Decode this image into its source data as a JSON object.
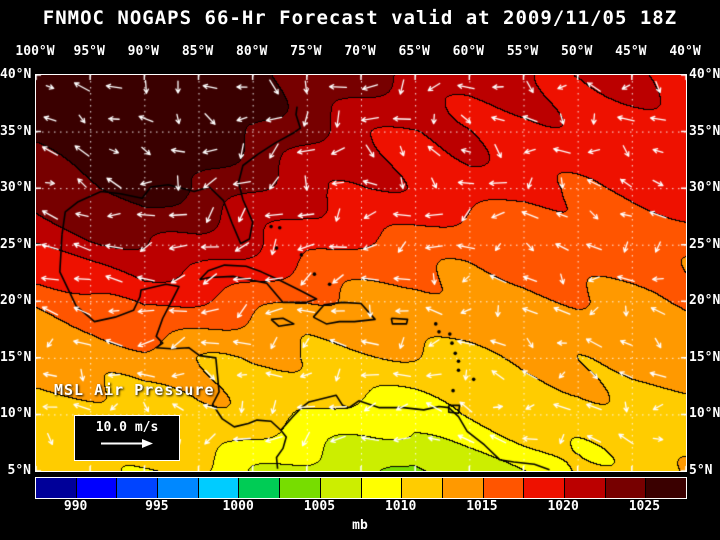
{
  "title": "FNMOC NOGAPS 66-Hr Forecast valid at 2009/11/05 18Z",
  "axes": {
    "lon_labels": [
      "100°W",
      "95°W",
      "90°W",
      "85°W",
      "80°W",
      "75°W",
      "70°W",
      "65°W",
      "60°W",
      "55°W",
      "50°W",
      "45°W",
      "40°W"
    ],
    "lat_labels": [
      "40°N",
      "35°N",
      "30°N",
      "25°N",
      "20°N",
      "15°N",
      "10°N",
      "5°N"
    ]
  },
  "overlay": {
    "field_label": "MSL Air Pressure",
    "wind_scale_label": "10.0 m/s"
  },
  "colorbar": {
    "unit": "mb",
    "tick_labels": [
      "990",
      "995",
      "1000",
      "1005",
      "1010",
      "1015",
      "1020",
      "1025"
    ],
    "level_min": 987.5,
    "level_max": 1027.5,
    "level_step": 2.5,
    "colors": [
      "#000099",
      "#0000ff",
      "#0044ff",
      "#0088ff",
      "#00ccff",
      "#00cc55",
      "#77dd00",
      "#ccee00",
      "#ffff00",
      "#ffcc00",
      "#ff9900",
      "#ff5500",
      "#ee1100",
      "#bb0000",
      "#770000",
      "#3a0000"
    ]
  },
  "chart_data": {
    "type": "heatmap",
    "title": "FNMOC NOGAPS 66-Hr Forecast valid at 2009/11/05 18Z",
    "model": "FNMOC NOGAPS",
    "forecast_hour": 66,
    "valid_time": "2009/11/05 18Z",
    "variable": "MSL Air Pressure",
    "units": "mb",
    "lon_range_deg": [
      -100,
      -40
    ],
    "lat_range_deg": [
      5,
      40
    ],
    "grid_lons": [
      -100,
      -95,
      -90,
      -85,
      -80,
      -75,
      -70,
      -65,
      -60,
      -55,
      -50,
      -45,
      -40
    ],
    "grid_lats": [
      40,
      35,
      30,
      25,
      20,
      15,
      10,
      5
    ],
    "pressure_grid_mb": [
      [
        1027,
        1028,
        1028,
        1027,
        1026,
        1024,
        1023,
        1022,
        1021,
        1021,
        1020,
        1020,
        1020
      ],
      [
        1026,
        1027,
        1027,
        1026,
        1025,
        1023,
        1021,
        1020,
        1020,
        1019,
        1019,
        1019,
        1019
      ],
      [
        1024,
        1025,
        1026,
        1025,
        1023,
        1021,
        1020,
        1019,
        1019,
        1018,
        1018,
        1018,
        1018
      ],
      [
        1020,
        1022,
        1023,
        1022,
        1020,
        1018,
        1017,
        1017,
        1016,
        1016,
        1016,
        1016,
        1016
      ],
      [
        1016,
        1017,
        1018,
        1017,
        1016,
        1015,
        1015,
        1014,
        1014,
        1014,
        1015,
        1015,
        1015
      ],
      [
        1013,
        1013,
        1014,
        1013,
        1013,
        1012,
        1012,
        1012,
        1012,
        1013,
        1013,
        1013,
        1013
      ],
      [
        1012,
        1012,
        1012,
        1012,
        1011,
        1010,
        1009,
        1009,
        1010,
        1011,
        1011,
        1012,
        1012
      ],
      [
        1011,
        1010,
        1010,
        1010,
        1008,
        1007,
        1006,
        1004,
        1006,
        1008,
        1010,
        1011,
        1012
      ]
    ],
    "contour_interval_mb": 2.5,
    "colorbar_levels_mb": [
      990,
      995,
      1000,
      1005,
      1010,
      1015,
      1020,
      1025
    ],
    "wind_reference_speed": "10.0 m/s",
    "wind_arrows": "white vectors; easterly trade winds south of 25N, anticyclonic flow around high pressure near 90W 38N"
  }
}
